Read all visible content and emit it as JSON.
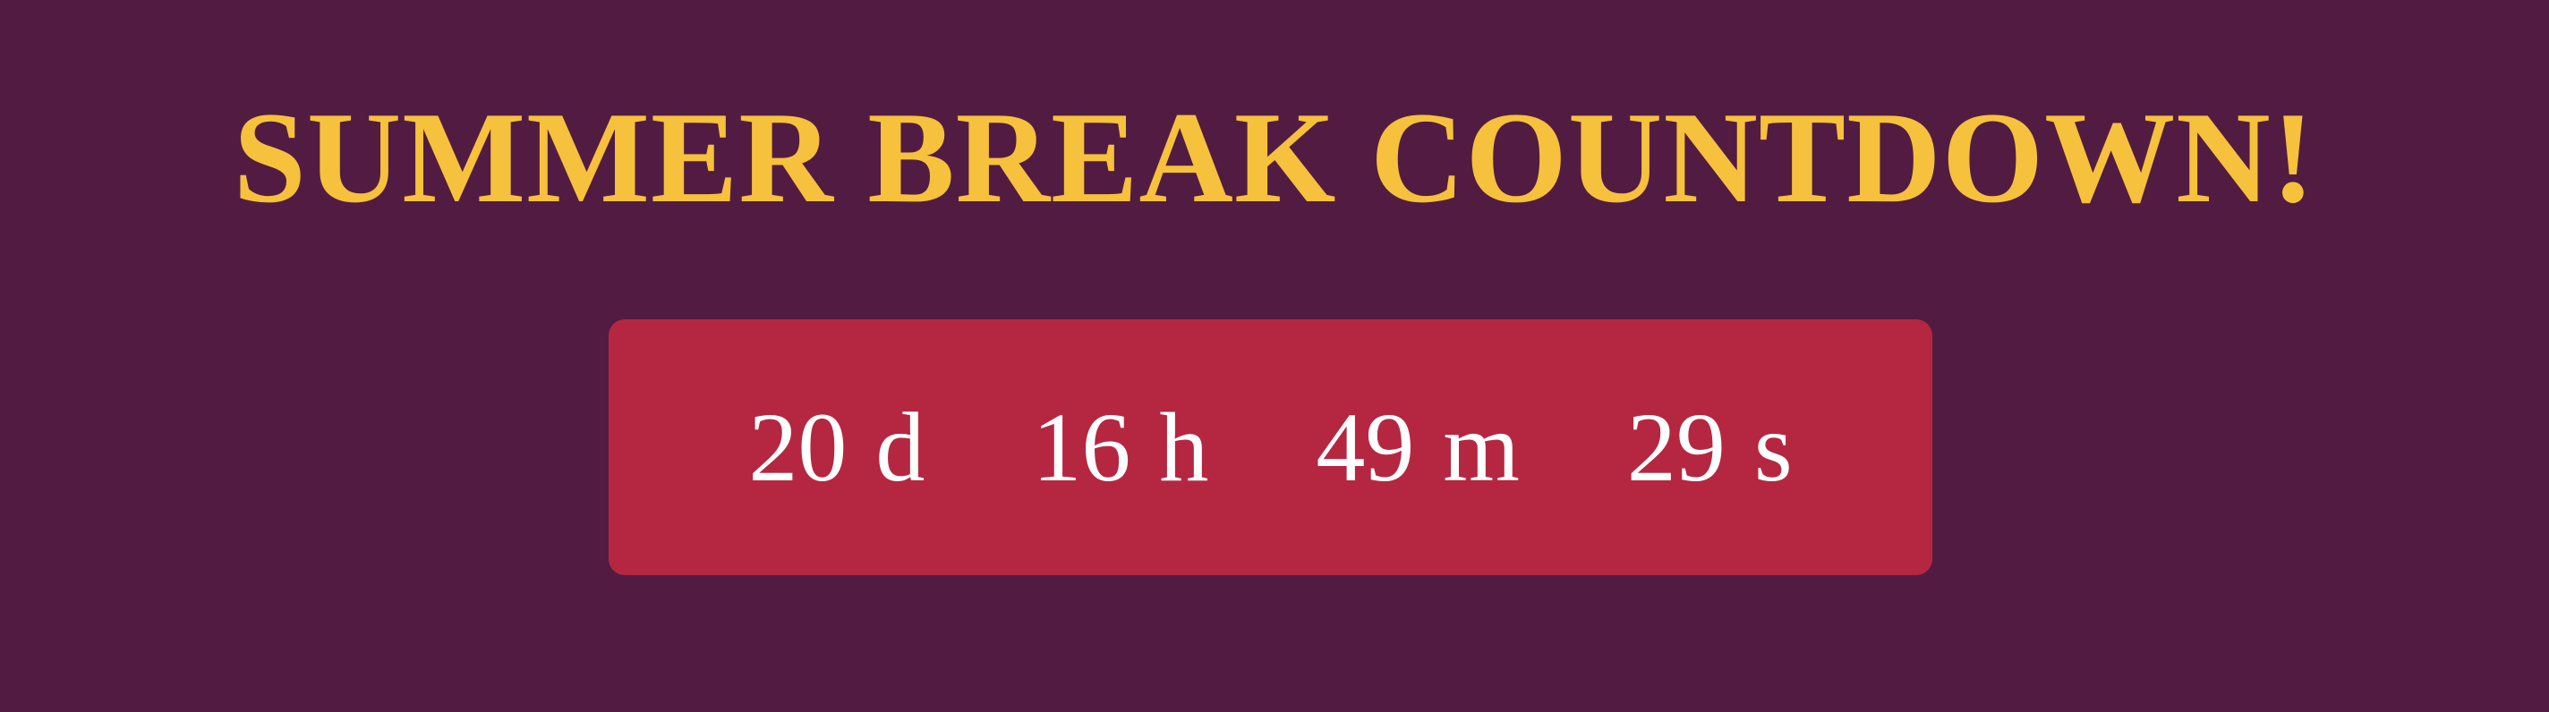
{
  "page": {
    "title": "SUMMER BREAK COUNTDOWN!"
  },
  "countdown": {
    "days": {
      "value": "20",
      "unit": "d"
    },
    "hours": {
      "value": "16",
      "unit": "h"
    },
    "minutes": {
      "value": "49",
      "unit": "m"
    },
    "seconds": {
      "value": "29",
      "unit": "s"
    }
  },
  "colors": {
    "background": "#521c42",
    "title": "#f6c13c",
    "countdown_box": "#b52740",
    "countdown_text": "#ffffff"
  }
}
